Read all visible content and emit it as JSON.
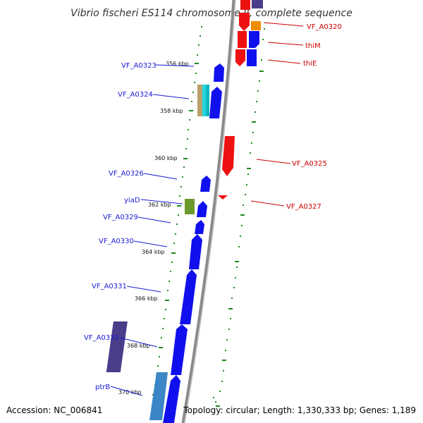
{
  "title": "Vibrio fischeri ES114 chromosome II, complete sequence",
  "footer": {
    "accession": "Accession: NC_006841",
    "topology": "Topology: circular; Length: 1,330,333 bp; Genes: 1,189"
  },
  "colors": {
    "backbone": "#8a8a8a",
    "forward_gene": "#1010ee",
    "reverse_gene": "#ee1111",
    "orange_gene": "#f08c00",
    "olive_gene": "#6b9a2a",
    "purple_gene": "#4a3d8a",
    "steel_gene": "#3a86c6",
    "tan_gene": "#b9a06a",
    "cyan_gene": "#22d8e0",
    "tick": "#1f8a1f",
    "label_left": "#1a1ad6",
    "label_right": "#cc0000"
  },
  "ticks": [
    "356 kbp",
    "358 kbp",
    "360 kbp",
    "362 kbp",
    "364 kbp",
    "366 kbp",
    "368 kbp",
    "370 kbp"
  ],
  "genes_left": [
    "VF_A0323",
    "VF_A0324",
    "VF_A0326",
    "yiaD",
    "VF_A0329",
    "VF_A0330",
    "VF_A0331",
    "VF_A0332",
    "ptrB"
  ],
  "genes_right": [
    "VF_A0320",
    "thiM",
    "thiE",
    "VF_A0325",
    "VF_A0327"
  ]
}
